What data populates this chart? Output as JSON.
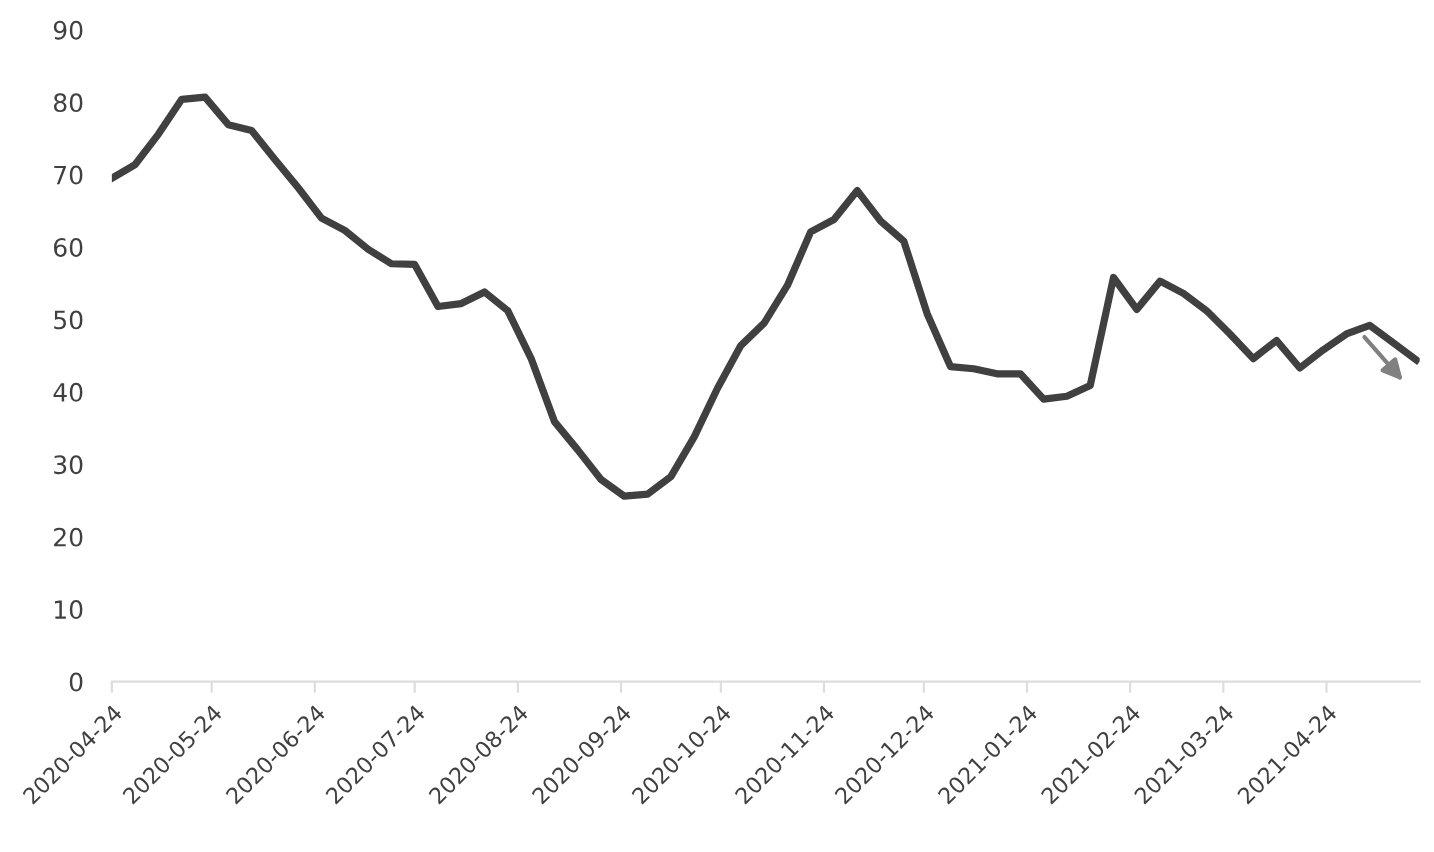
{
  "chart_data": {
    "type": "line",
    "x": [
      "2020-04-24",
      "2020-05-01",
      "2020-05-08",
      "2020-05-15",
      "2020-05-22",
      "2020-05-29",
      "2020-06-05",
      "2020-06-12",
      "2020-06-19",
      "2020-06-26",
      "2020-07-03",
      "2020-07-10",
      "2020-07-17",
      "2020-07-24",
      "2020-07-31",
      "2020-08-07",
      "2020-08-14",
      "2020-08-21",
      "2020-08-28",
      "2020-09-04",
      "2020-09-11",
      "2020-09-18",
      "2020-09-25",
      "2020-10-02",
      "2020-10-09",
      "2020-10-16",
      "2020-10-23",
      "2020-10-30",
      "2020-11-06",
      "2020-11-13",
      "2020-11-20",
      "2020-11-27",
      "2020-12-04",
      "2020-12-11",
      "2020-12-18",
      "2020-12-25",
      "2021-01-01",
      "2021-01-08",
      "2021-01-15",
      "2021-01-22",
      "2021-01-29",
      "2021-02-05",
      "2021-02-12",
      "2021-02-19",
      "2021-02-26",
      "2021-03-05",
      "2021-03-12",
      "2021-03-19",
      "2021-03-26",
      "2021-04-02",
      "2021-04-09",
      "2021-04-16",
      "2021-04-23",
      "2021-04-30",
      "2021-05-07",
      "2021-05-14",
      "2021-05-21"
    ],
    "series": [
      {
        "color": "#404040",
        "values": [
          69.5,
          71.4,
          75.6,
          80.4,
          80.7,
          76.9,
          76.1,
          72.1,
          68.2,
          64.0,
          62.3,
          59.7,
          57.7,
          57.6,
          51.8,
          52.2,
          53.8,
          51.2,
          44.6,
          35.9,
          32.0,
          27.9,
          25.6,
          25.9,
          28.3,
          33.8,
          40.5,
          46.4,
          49.5,
          54.7,
          62.1,
          63.8,
          67.8,
          63.6,
          60.8,
          50.8,
          43.5,
          43.2,
          42.5,
          42.5,
          39.0,
          39.4,
          40.9,
          55.8,
          51.4,
          55.3,
          53.6,
          51.2,
          48.0,
          44.6,
          47.1,
          43.3,
          45.8,
          48.0,
          49.2,
          46.8,
          44.4
        ]
      }
    ],
    "xlim": [
      "2020-04-24",
      "2021-05-22"
    ],
    "xticks": [
      "2020-04-24",
      "2020-05-24",
      "2020-06-24",
      "2020-07-24",
      "2020-08-24",
      "2020-09-24",
      "2020-10-24",
      "2020-11-24",
      "2020-12-24",
      "2021-01-24",
      "2021-02-24",
      "2021-03-24",
      "2021-04-24"
    ],
    "ylim": [
      0,
      90
    ],
    "yticks": [
      0,
      10,
      20,
      30,
      40,
      50,
      60,
      70,
      80,
      90
    ],
    "grid": false,
    "legend": false,
    "marker": "none",
    "line_style": "solid"
  }
}
